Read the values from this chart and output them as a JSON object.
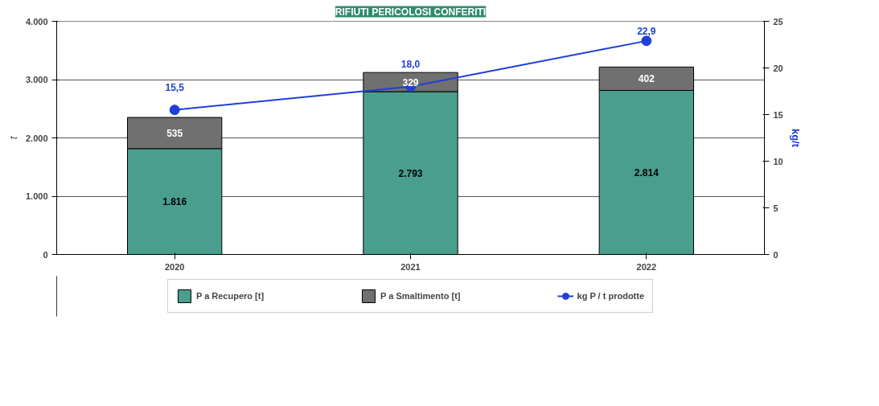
{
  "chart_data": {
    "type": "bar",
    "title": "RIFIUTI PERICOLOSI CONFERITI",
    "ylabel": "t",
    "y2label": "kg/t",
    "categories": [
      "2020",
      "2021",
      "2022"
    ],
    "stacked": true,
    "series": [
      {
        "name": "P a Recupero [t]",
        "color": "#4a9e8e",
        "values": [
          1816,
          2793,
          2814
        ],
        "value_labels": [
          "1.816",
          "2.793",
          "2.814"
        ]
      },
      {
        "name": "P a Smaltimento [t]",
        "color": "#707070",
        "values": [
          535,
          329,
          402
        ],
        "value_labels": [
          "535",
          "329",
          "402"
        ]
      },
      {
        "name": "kg P / t prodotte",
        "type": "line",
        "axis": "y2",
        "color": "#1f3fd8",
        "marker": "circle",
        "values": [
          15.5,
          18.0,
          22.9
        ],
        "value_labels": [
          "15,5",
          "18,0",
          "22,9"
        ]
      }
    ],
    "ylim": [
      0,
      4000
    ],
    "yticks": [
      {
        "value": 0,
        "label": "0"
      },
      {
        "value": 1000,
        "label": "1.000"
      },
      {
        "value": 2000,
        "label": "2.000"
      },
      {
        "value": 3000,
        "label": "3.000"
      },
      {
        "value": 4000,
        "label": "4.000"
      }
    ],
    "y2lim": [
      0,
      25
    ],
    "y2ticks": [
      0,
      5,
      10,
      15,
      20,
      25
    ],
    "grid": "y",
    "legend": "bottom"
  }
}
